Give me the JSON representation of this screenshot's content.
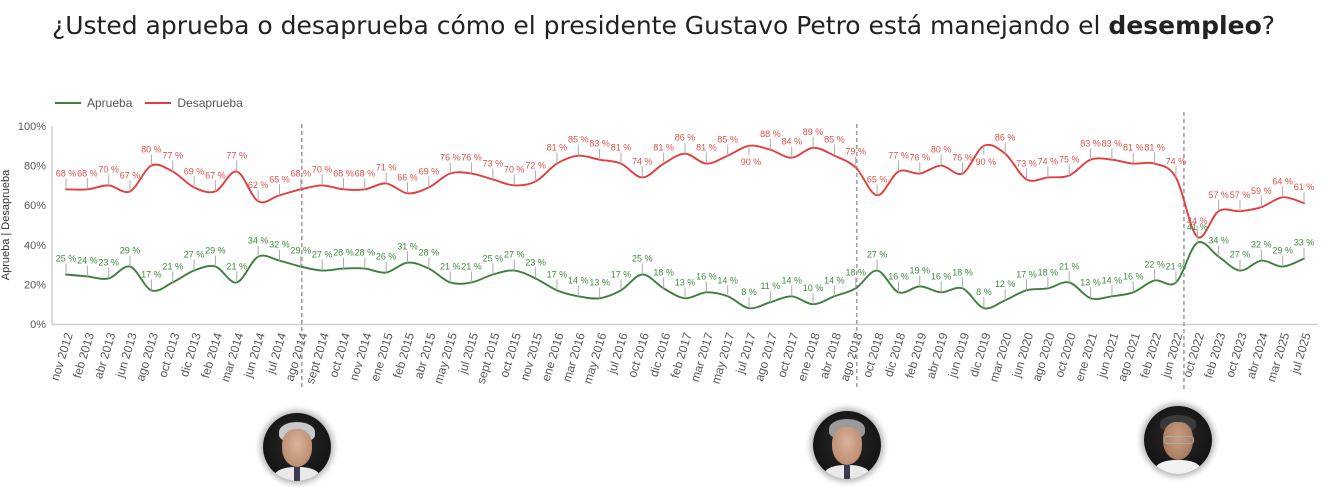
{
  "title": {
    "prefix": "¿Usted aprueba o desaprueba cómo el presidente Gustavo Petro está manejando el ",
    "bold": "desempleo",
    "suffix": "?"
  },
  "chart_data": {
    "type": "line",
    "title": "¿Usted aprueba o desaprueba cómo el presidente Gustavo Petro está manejando el desempleo?",
    "xlabel": "",
    "ylabel": "Aprueba | Desaprueba",
    "ylim": [
      0,
      100
    ],
    "yticks": [
      0,
      20,
      40,
      60,
      80,
      100
    ],
    "ytick_labels": [
      "0%",
      "20%",
      "40%",
      "60%",
      "80%",
      "100%"
    ],
    "grid": false,
    "smooth": true,
    "legend": "top-left",
    "data_label_suffix": " %",
    "categories": [
      "nov 2012",
      "feb 2013",
      "abr 2013",
      "jun 2013",
      "ago 2013",
      "oct 2013",
      "dic 2013",
      "feb 2014",
      "mar 2014",
      "jun 2014",
      "jul 2014",
      "ago 2014",
      "sept 2014",
      "oct 2014",
      "nov 2014",
      "ene 2015",
      "feb 2015",
      "abr 2015",
      "may 2015",
      "jul 2015",
      "sept 2015",
      "oct 2015",
      "nov 2015",
      "ene 2016",
      "mar 2016",
      "may 2016",
      "jul 2016",
      "oct 2016",
      "dic 2016",
      "feb 2017",
      "mar 2017",
      "may 2017",
      "jul 2017",
      "ago 2017",
      "oct 2017",
      "ene 2018",
      "abr 2018",
      "ago 2018",
      "oct 2018",
      "dic 2018",
      "feb 2019",
      "abr 2019",
      "jun 2019",
      "dic 2019",
      "mar 2020",
      "jun 2020",
      "ago 2020",
      "oct 2020",
      "ene 2021",
      "jun 2021",
      "ago 2021",
      "feb 2022",
      "jun 2022",
      "oct 2022",
      "feb 2023",
      "oct 2023",
      "abr 2024",
      "mar 2025",
      "jul 2025"
    ],
    "series": [
      {
        "name": "Aprueba",
        "color": "#3e7f3e",
        "label_color": "#3d8b3d",
        "values": [
          25,
          24,
          23,
          29,
          17,
          21,
          27,
          29,
          21,
          34,
          32,
          29,
          27,
          28,
          28,
          26,
          31,
          28,
          21,
          21,
          25,
          27,
          23,
          17,
          14,
          13,
          17,
          25,
          18,
          13,
          16,
          14,
          8,
          11,
          14,
          10,
          14,
          18,
          27,
          16,
          19,
          16,
          18,
          8,
          12,
          17,
          18,
          21,
          13,
          14,
          16,
          22,
          21,
          41,
          34,
          27,
          32,
          29,
          33
        ]
      },
      {
        "name": "Desaprueba",
        "color": "#e23e3e",
        "label_color": "#e0504a",
        "values": [
          68,
          68,
          70,
          67,
          80,
          77,
          69,
          67,
          77,
          62,
          65,
          68,
          70,
          68,
          68,
          71,
          66,
          69,
          76,
          76,
          73,
          70,
          72,
          81,
          85,
          83,
          81,
          74,
          81,
          86,
          81,
          85,
          90,
          88,
          84,
          89,
          85,
          79,
          65,
          77,
          76,
          80,
          76,
          90,
          86,
          73,
          74,
          75,
          83,
          83,
          81,
          81,
          74,
          44,
          57,
          57,
          59,
          64,
          61
        ]
      }
    ],
    "period_dividers": [
      "ago 2014",
      "ago 2018",
      "jun 2022"
    ]
  }
}
